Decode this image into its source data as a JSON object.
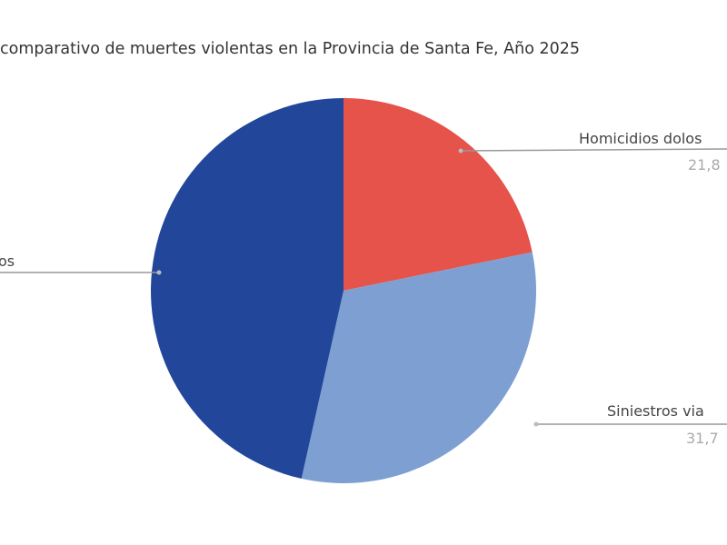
{
  "chart_data": {
    "type": "pie",
    "title": "comparativo de muertes violentas en la Provincia de Santa Fe, Año 2025",
    "slices": [
      {
        "label": "Homicidios dolos",
        "value_label": "21,8",
        "value": 21.8,
        "color": "#e5534b"
      },
      {
        "label": "Siniestros via",
        "value_label": "31,7",
        "value": 31.7,
        "color": "#7e9fd2"
      },
      {
        "label": "os",
        "value_label": "",
        "value": 46.5,
        "color": "#21469a"
      }
    ],
    "legend": "none"
  }
}
